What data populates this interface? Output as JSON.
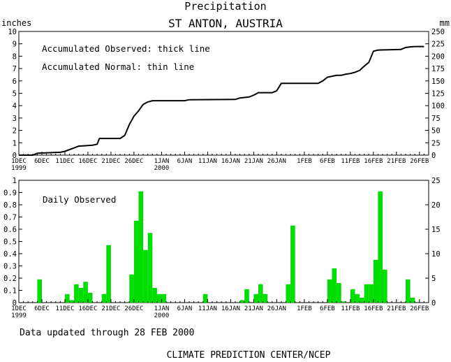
{
  "header": {
    "title": "Precipitation",
    "subtitle": "ST ANTON, AUSTRIA",
    "left_unit": "inches",
    "right_unit": "mm"
  },
  "footer": {
    "updated": "Data updated through 28 FEB 2000",
    "credit": "CLIMATE PREDICTION CENTER/NCEP"
  },
  "colors": {
    "bars": "#00dd00",
    "line": "#000000",
    "background": "#ffffff"
  },
  "chart_data": [
    {
      "type": "line",
      "legend_lines": [
        "Accumulated Observed: thick line",
        "Accumulated Normal: thin line"
      ],
      "x_tick_labels": [
        "1DEC",
        "6DEC",
        "11DEC",
        "16DEC",
        "21DEC",
        "26DEC",
        "1JAN",
        "6JAN",
        "11JAN",
        "16JAN",
        "21JAN",
        "26JAN",
        "1FEB",
        "6FEB",
        "11FEB",
        "16FEB",
        "21FEB",
        "26FEB"
      ],
      "x_year_labels": [
        {
          "at": "1DEC",
          "text": "1999"
        },
        {
          "at": "1JAN",
          "text": "2000"
        }
      ],
      "x_range_days": [
        0,
        89
      ],
      "ylim_inches": [
        0,
        10
      ],
      "y_ticks_inches": [
        0,
        1,
        2,
        3,
        4,
        5,
        6,
        7,
        8,
        9,
        10
      ],
      "ylim_mm": [
        0,
        250
      ],
      "y_ticks_mm": [
        0,
        25,
        50,
        75,
        100,
        125,
        150,
        175,
        200,
        225,
        250
      ],
      "grid": false,
      "series": [
        {
          "style": "thick",
          "points": [
            [
              0,
              0
            ],
            [
              3,
              0
            ],
            [
              4,
              0.15
            ],
            [
              9,
              0.23
            ],
            [
              10,
              0.31
            ],
            [
              12,
              0.58
            ],
            [
              13,
              0.73
            ],
            [
              16,
              0.8
            ],
            [
              17,
              0.88
            ],
            [
              17.5,
              1.35
            ],
            [
              22,
              1.35
            ],
            [
              23,
              1.6
            ],
            [
              24,
              2.48
            ],
            [
              25,
              3.15
            ],
            [
              26,
              3.58
            ],
            [
              27,
              4.1
            ],
            [
              28,
              4.3
            ],
            [
              29,
              4.4
            ],
            [
              36,
              4.4
            ],
            [
              37,
              4.48
            ],
            [
              47,
              4.5
            ],
            [
              48,
              4.62
            ],
            [
              50,
              4.7
            ],
            [
              51,
              4.85
            ],
            [
              52,
              5.05
            ],
            [
              55,
              5.05
            ],
            [
              56,
              5.2
            ],
            [
              57,
              5.8
            ],
            [
              65,
              5.8
            ],
            [
              66,
              6.0
            ],
            [
              67,
              6.3
            ],
            [
              69,
              6.45
            ],
            [
              70,
              6.45
            ],
            [
              71,
              6.55
            ],
            [
              72,
              6.6
            ],
            [
              73,
              6.7
            ],
            [
              74,
              6.85
            ],
            [
              75,
              7.2
            ],
            [
              76,
              7.5
            ],
            [
              77,
              8.4
            ],
            [
              78,
              8.5
            ],
            [
              83,
              8.55
            ],
            [
              84,
              8.7
            ],
            [
              85,
              8.75
            ],
            [
              86,
              8.78
            ],
            [
              88,
              8.78
            ]
          ]
        }
      ]
    },
    {
      "type": "bar",
      "legend_lines": [
        "Daily Observed"
      ],
      "x_tick_labels": [
        "1DEC",
        "6DEC",
        "11DEC",
        "16DEC",
        "21DEC",
        "26DEC",
        "1JAN",
        "6JAN",
        "11JAN",
        "16JAN",
        "21JAN",
        "26JAN",
        "1FEB",
        "6FEB",
        "11FEB",
        "16FEB",
        "21FEB",
        "26FEB"
      ],
      "x_year_labels": [
        {
          "at": "1DEC",
          "text": "1999"
        },
        {
          "at": "1JAN",
          "text": "2000"
        }
      ],
      "x_range_days": [
        0,
        89
      ],
      "ylim_inches": [
        0,
        1
      ],
      "y_ticks_inches": [
        "0",
        "0.1",
        "0.2",
        "0.3",
        "0.4",
        "0.5",
        "0.6",
        "0.7",
        "0.8",
        "0.9",
        "1"
      ],
      "ylim_mm": [
        0,
        25
      ],
      "y_ticks_mm": [
        0,
        5,
        10,
        15,
        20,
        25
      ],
      "grid": false,
      "bars": [
        {
          "day": 4,
          "value": 0.19
        },
        {
          "day": 10,
          "value": 0.07
        },
        {
          "day": 11,
          "value": 0.02
        },
        {
          "day": 12,
          "value": 0.15
        },
        {
          "day": 13,
          "value": 0.12
        },
        {
          "day": 14,
          "value": 0.17
        },
        {
          "day": 15,
          "value": 0.08
        },
        {
          "day": 18,
          "value": 0.07
        },
        {
          "day": 19,
          "value": 0.47
        },
        {
          "day": 24,
          "value": 0.23
        },
        {
          "day": 25,
          "value": 0.67
        },
        {
          "day": 26,
          "value": 0.91
        },
        {
          "day": 27,
          "value": 0.43
        },
        {
          "day": 28,
          "value": 0.57
        },
        {
          "day": 29,
          "value": 0.12
        },
        {
          "day": 30,
          "value": 0.07
        },
        {
          "day": 31,
          "value": 0.07
        },
        {
          "day": 40,
          "value": 0.07
        },
        {
          "day": 48,
          "value": 0.02
        },
        {
          "day": 49,
          "value": 0.11
        },
        {
          "day": 51,
          "value": 0.07
        },
        {
          "day": 52,
          "value": 0.15
        },
        {
          "day": 53,
          "value": 0.07
        },
        {
          "day": 58,
          "value": 0.15
        },
        {
          "day": 59,
          "value": 0.63
        },
        {
          "day": 67,
          "value": 0.19
        },
        {
          "day": 68,
          "value": 0.28
        },
        {
          "day": 69,
          "value": 0.16
        },
        {
          "day": 70,
          "value": 0.01
        },
        {
          "day": 72,
          "value": 0.11
        },
        {
          "day": 73,
          "value": 0.07
        },
        {
          "day": 74,
          "value": 0.04
        },
        {
          "day": 75,
          "value": 0.15
        },
        {
          "day": 76,
          "value": 0.15
        },
        {
          "day": 77,
          "value": 0.35
        },
        {
          "day": 78,
          "value": 0.91
        },
        {
          "day": 79,
          "value": 0.27
        },
        {
          "day": 84,
          "value": 0.19
        },
        {
          "day": 85,
          "value": 0.04
        }
      ]
    }
  ]
}
